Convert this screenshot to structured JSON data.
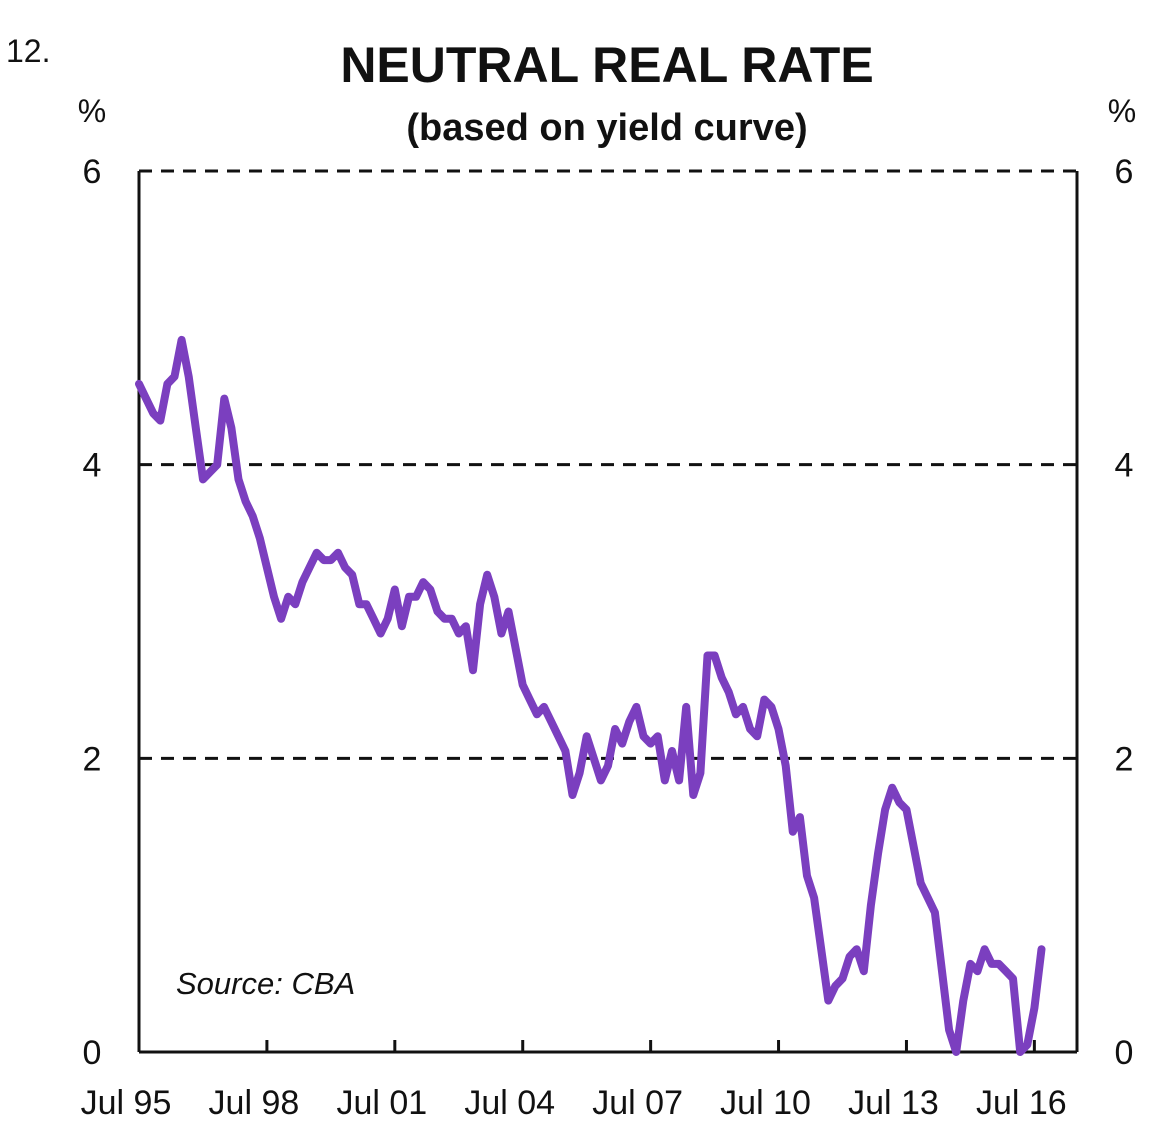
{
  "chart_number": "12.",
  "chart_data": {
    "type": "line",
    "title": "NEUTRAL REAL RATE",
    "subtitle": "(based on yield curve)",
    "y_unit_left": "%",
    "y_unit_right": "%",
    "ylim": [
      0,
      6
    ],
    "y_ticks": [
      0,
      2,
      4,
      6
    ],
    "y_tick_labels": [
      "0",
      "2",
      "4",
      "6"
    ],
    "x_range": [
      "1995-07",
      "2017-07"
    ],
    "x_ticks": [
      "1995-07",
      "1998-07",
      "2001-07",
      "2004-07",
      "2007-07",
      "2010-07",
      "2013-07",
      "2016-07"
    ],
    "x_tick_labels": [
      "Jul 95",
      "Jul 98",
      "Jul 01",
      "Jul 04",
      "Jul 07",
      "Jul 10",
      "Jul 13",
      "Jul 16"
    ],
    "grid": "dashed horizontal at 2, 4, 6",
    "source": "Source: CBA",
    "line_color": "#7B3FBF",
    "series": [
      {
        "points": [
          [
            "1995-07",
            4.55
          ],
          [
            "1995-09",
            4.45
          ],
          [
            "1995-11",
            4.35
          ],
          [
            "1996-01",
            4.3
          ],
          [
            "1996-03",
            4.55
          ],
          [
            "1996-05",
            4.6
          ],
          [
            "1996-07",
            4.85
          ],
          [
            "1996-09",
            4.6
          ],
          [
            "1996-11",
            4.25
          ],
          [
            "1997-01",
            3.9
          ],
          [
            "1997-03",
            3.95
          ],
          [
            "1997-05",
            4.0
          ],
          [
            "1997-07",
            4.45
          ],
          [
            "1997-09",
            4.25
          ],
          [
            "1997-11",
            3.9
          ],
          [
            "1998-01",
            3.75
          ],
          [
            "1998-03",
            3.65
          ],
          [
            "1998-05",
            3.5
          ],
          [
            "1998-07",
            3.3
          ],
          [
            "1998-09",
            3.1
          ],
          [
            "1998-11",
            2.95
          ],
          [
            "1999-01",
            3.1
          ],
          [
            "1999-03",
            3.05
          ],
          [
            "1999-05",
            3.2
          ],
          [
            "1999-07",
            3.3
          ],
          [
            "1999-09",
            3.4
          ],
          [
            "1999-11",
            3.35
          ],
          [
            "2000-01",
            3.35
          ],
          [
            "2000-03",
            3.4
          ],
          [
            "2000-05",
            3.3
          ],
          [
            "2000-07",
            3.25
          ],
          [
            "2000-09",
            3.05
          ],
          [
            "2000-11",
            3.05
          ],
          [
            "2001-01",
            2.95
          ],
          [
            "2001-03",
            2.85
          ],
          [
            "2001-05",
            2.95
          ],
          [
            "2001-07",
            3.15
          ],
          [
            "2001-09",
            2.9
          ],
          [
            "2001-11",
            3.1
          ],
          [
            "2002-01",
            3.1
          ],
          [
            "2002-03",
            3.2
          ],
          [
            "2002-05",
            3.15
          ],
          [
            "2002-07",
            3.0
          ],
          [
            "2002-09",
            2.95
          ],
          [
            "2002-11",
            2.95
          ],
          [
            "2003-01",
            2.85
          ],
          [
            "2003-03",
            2.9
          ],
          [
            "2003-05",
            2.6
          ],
          [
            "2003-07",
            3.05
          ],
          [
            "2003-09",
            3.25
          ],
          [
            "2003-11",
            3.1
          ],
          [
            "2004-01",
            2.85
          ],
          [
            "2004-03",
            3.0
          ],
          [
            "2004-05",
            2.75
          ],
          [
            "2004-07",
            2.5
          ],
          [
            "2004-09",
            2.4
          ],
          [
            "2004-11",
            2.3
          ],
          [
            "2005-01",
            2.35
          ],
          [
            "2005-03",
            2.25
          ],
          [
            "2005-05",
            2.15
          ],
          [
            "2005-07",
            2.05
          ],
          [
            "2005-09",
            1.75
          ],
          [
            "2005-11",
            1.9
          ],
          [
            "2006-01",
            2.15
          ],
          [
            "2006-03",
            2.0
          ],
          [
            "2006-05",
            1.85
          ],
          [
            "2006-07",
            1.95
          ],
          [
            "2006-09",
            2.2
          ],
          [
            "2006-11",
            2.1
          ],
          [
            "2007-01",
            2.25
          ],
          [
            "2007-03",
            2.35
          ],
          [
            "2007-05",
            2.15
          ],
          [
            "2007-07",
            2.1
          ],
          [
            "2007-09",
            2.15
          ],
          [
            "2007-11",
            1.85
          ],
          [
            "2008-01",
            2.05
          ],
          [
            "2008-03",
            1.85
          ],
          [
            "2008-05",
            2.35
          ],
          [
            "2008-07",
            1.75
          ],
          [
            "2008-09",
            1.9
          ],
          [
            "2008-11",
            2.7
          ],
          [
            "2009-01",
            2.7
          ],
          [
            "2009-03",
            2.55
          ],
          [
            "2009-05",
            2.45
          ],
          [
            "2009-07",
            2.3
          ],
          [
            "2009-09",
            2.35
          ],
          [
            "2009-11",
            2.2
          ],
          [
            "2010-01",
            2.15
          ],
          [
            "2010-03",
            2.4
          ],
          [
            "2010-05",
            2.35
          ],
          [
            "2010-07",
            2.2
          ],
          [
            "2010-09",
            1.95
          ],
          [
            "2010-11",
            1.5
          ],
          [
            "2011-01",
            1.6
          ],
          [
            "2011-03",
            1.2
          ],
          [
            "2011-05",
            1.05
          ],
          [
            "2011-07",
            0.7
          ],
          [
            "2011-09",
            0.35
          ],
          [
            "2011-11",
            0.45
          ],
          [
            "2012-01",
            0.5
          ],
          [
            "2012-03",
            0.65
          ],
          [
            "2012-05",
            0.7
          ],
          [
            "2012-07",
            0.55
          ],
          [
            "2012-09",
            1.0
          ],
          [
            "2012-11",
            1.35
          ],
          [
            "2013-01",
            1.65
          ],
          [
            "2013-03",
            1.8
          ],
          [
            "2013-05",
            1.7
          ],
          [
            "2013-07",
            1.65
          ],
          [
            "2013-09",
            1.4
          ],
          [
            "2013-11",
            1.15
          ],
          [
            "2014-01",
            1.05
          ],
          [
            "2014-03",
            0.95
          ],
          [
            "2014-05",
            0.55
          ],
          [
            "2014-07",
            0.15
          ],
          [
            "2014-09",
            0.0
          ],
          [
            "2014-11",
            0.35
          ],
          [
            "2015-01",
            0.6
          ],
          [
            "2015-03",
            0.55
          ],
          [
            "2015-05",
            0.7
          ],
          [
            "2015-07",
            0.6
          ],
          [
            "2015-09",
            0.6
          ],
          [
            "2015-11",
            0.55
          ],
          [
            "2016-01",
            0.5
          ],
          [
            "2016-03",
            0.0
          ],
          [
            "2016-05",
            0.05
          ],
          [
            "2016-07",
            0.3
          ],
          [
            "2016-09",
            0.7
          ]
        ]
      }
    ]
  }
}
